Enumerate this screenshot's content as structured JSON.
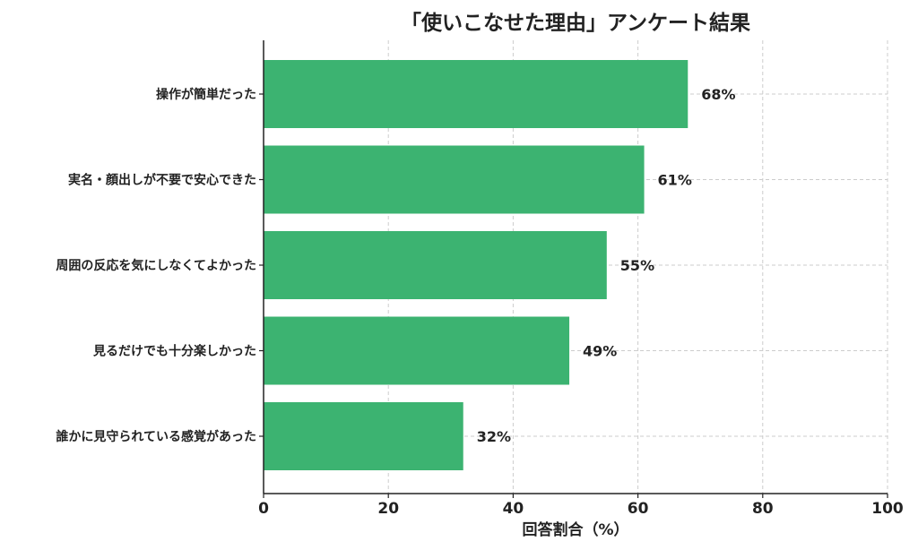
{
  "chart_data": {
    "type": "bar",
    "orientation": "horizontal",
    "title": "「使いこなせた理由」アンケート結果",
    "xlabel": "回答割合（%）",
    "ylabel": "",
    "xlim": [
      0,
      100
    ],
    "xticks": [
      0,
      20,
      40,
      60,
      80,
      100
    ],
    "grid": true,
    "categories": [
      "操作が簡単だった",
      "実名・顔出しが不要で安心できた",
      "周囲の反応を気にしなくてよかった",
      "見るだけでも十分楽しかった",
      "誰かに見守られている感覚があった"
    ],
    "values": [
      68,
      61,
      55,
      49,
      32
    ],
    "value_labels": [
      "68%",
      "61%",
      "55%",
      "49%",
      "32%"
    ],
    "bar_color": "#3cb371"
  }
}
